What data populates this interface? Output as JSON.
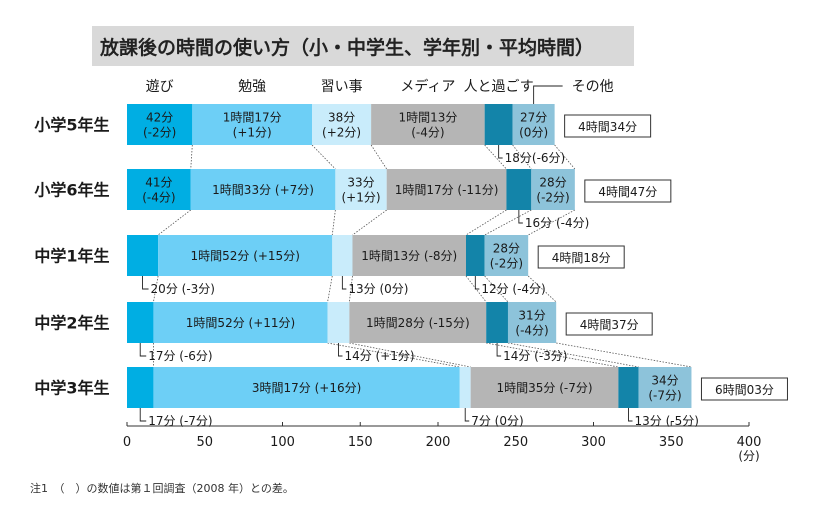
{
  "chart_data": {
    "type": "bar",
    "orientation": "horizontal",
    "stacked": true,
    "title": "放課後の時間の使い方（小・中学生、学年別・平均時間）",
    "xunit": "(分)",
    "xlim": [
      0,
      400
    ],
    "xticks": [
      0,
      50,
      100,
      150,
      200,
      250,
      300,
      350,
      400
    ],
    "grid": false,
    "legend_position": "top",
    "note": "注1　（　）の数値は第１回調査（2008 年）との差。",
    "categories": [
      "小学5年生",
      "小学6年生",
      "中学1年生",
      "中学2年生",
      "中学3年生"
    ],
    "series": [
      {
        "name": "遊び",
        "color": "#00aee3",
        "values": [
          42,
          41,
          20,
          17,
          17
        ],
        "labels": [
          [
            "42分",
            "(-2分)"
          ],
          [
            "41分",
            "(-4分)"
          ],
          [
            "20分 (-3分)"
          ],
          [
            "17分 (-6分)"
          ],
          [
            "17分 (-7分)"
          ]
        ]
      },
      {
        "name": "勉強",
        "color": "#6dcff6",
        "values": [
          77,
          93,
          112,
          112,
          197
        ],
        "labels": [
          [
            "1時間17分",
            "(+1分)"
          ],
          [
            "1時間33分 (+7分)"
          ],
          [
            "1時間52分 (+15分)"
          ],
          [
            "1時間52分 (+11分)"
          ],
          [
            "3時間17分 (+16分)"
          ]
        ]
      },
      {
        "name": "習い事",
        "color": "#c9ecfb",
        "values": [
          38,
          33,
          13,
          14,
          7
        ],
        "labels": [
          [
            "38分",
            "(+2分)"
          ],
          [
            "33分",
            "(+1分)"
          ],
          [
            "13分 (0分)"
          ],
          [
            "14分 (+1分)"
          ],
          [
            "7分 (0分)"
          ]
        ]
      },
      {
        "name": "メディア",
        "color": "#b5b5b5",
        "values": [
          73,
          77,
          73,
          88,
          95
        ],
        "labels": [
          [
            "1時間13分",
            "(-4分)"
          ],
          [
            "1時間17分 (-11分)"
          ],
          [
            "1時間13分 (-8分)"
          ],
          [
            "1時間28分 (-15分)"
          ],
          [
            "1時間35分 (-7分)"
          ]
        ]
      },
      {
        "name": "人と過ごす",
        "color": "#1384a9",
        "values": [
          18,
          16,
          12,
          14,
          13
        ],
        "labels": [
          [
            "18分(-6分)"
          ],
          [
            "16分 (-4分)"
          ],
          [
            "12分 (-4分)"
          ],
          [
            "14分 (-3分)"
          ],
          [
            "13分 (-5分)"
          ]
        ]
      },
      {
        "name": "その他",
        "color": "#8dc3da",
        "values": [
          27,
          28,
          28,
          31,
          34
        ],
        "labels": [
          [
            "27分",
            "(0分)"
          ],
          [
            "28分",
            "(-2分)"
          ],
          [
            "28分",
            "(-2分)"
          ],
          [
            "31分",
            "(-4分)"
          ],
          [
            "34分",
            "(-7分)"
          ]
        ]
      }
    ],
    "totals": [
      "4時間34分",
      "4時間47分",
      "4時間18分",
      "4時間37分",
      "6時間03分"
    ]
  }
}
